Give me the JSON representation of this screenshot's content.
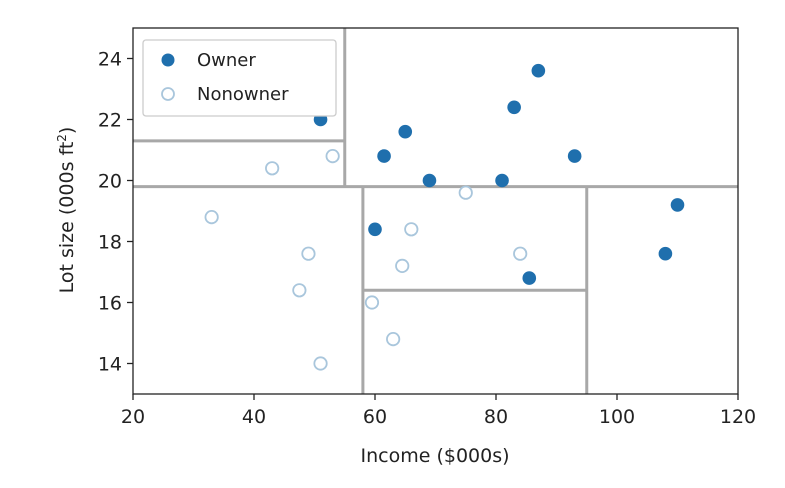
{
  "chart_data": {
    "type": "scatter",
    "title": "",
    "xlabel": "Income ($000s)",
    "ylabel": {
      "prefix": "Lot size (000s ft",
      "sup": "2",
      "suffix": ")"
    },
    "xlim": [
      20,
      120
    ],
    "ylim": [
      13,
      25
    ],
    "xticks": [
      20,
      40,
      60,
      80,
      100,
      120
    ],
    "yticks": [
      14,
      16,
      18,
      20,
      22,
      24
    ],
    "grid": false,
    "legend_position": "top-left",
    "series": [
      {
        "name": "Owner",
        "marker": "filled-circle",
        "color": "#1f6fad",
        "points": [
          {
            "x": 51,
            "y": 22
          },
          {
            "x": 61.5,
            "y": 20.8
          },
          {
            "x": 65,
            "y": 21.6
          },
          {
            "x": 69,
            "y": 20
          },
          {
            "x": 81,
            "y": 20
          },
          {
            "x": 83,
            "y": 22.4
          },
          {
            "x": 87,
            "y": 23.6
          },
          {
            "x": 93,
            "y": 20.8
          },
          {
            "x": 60,
            "y": 18.4
          },
          {
            "x": 85.5,
            "y": 16.8
          },
          {
            "x": 108,
            "y": 17.6
          },
          {
            "x": 110,
            "y": 19.2
          }
        ]
      },
      {
        "name": "Nonowner",
        "marker": "open-circle",
        "color": "#a9c6dc",
        "points": [
          {
            "x": 43,
            "y": 20.4
          },
          {
            "x": 53,
            "y": 20.8
          },
          {
            "x": 33,
            "y": 18.8
          },
          {
            "x": 49,
            "y": 17.6
          },
          {
            "x": 47.5,
            "y": 16.4
          },
          {
            "x": 51,
            "y": 14
          },
          {
            "x": 59.5,
            "y": 16
          },
          {
            "x": 63,
            "y": 14.8
          },
          {
            "x": 64.5,
            "y": 17.2
          },
          {
            "x": 66,
            "y": 18.4
          },
          {
            "x": 75,
            "y": 19.6
          },
          {
            "x": 84,
            "y": 17.6
          }
        ]
      }
    ],
    "splits": [
      {
        "axis": "y",
        "value": 19.8,
        "from": 20,
        "to": 120
      },
      {
        "axis": "x",
        "value": 55,
        "from": 19.8,
        "to": 25
      },
      {
        "axis": "y",
        "value": 21.3,
        "from": 20,
        "to": 55
      },
      {
        "axis": "x",
        "value": 58,
        "from": 13,
        "to": 19.8
      },
      {
        "axis": "x",
        "value": 95,
        "from": 13,
        "to": 19.8
      },
      {
        "axis": "y",
        "value": 16.4,
        "from": 58,
        "to": 95
      }
    ],
    "split_line_color": "#a8a8a8"
  }
}
